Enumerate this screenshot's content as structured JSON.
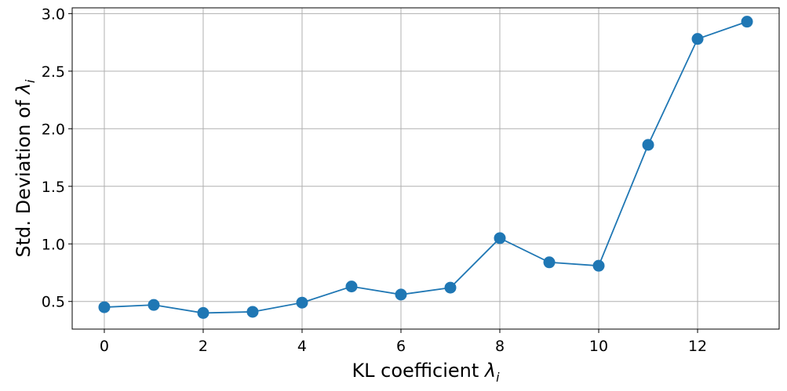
{
  "chart_data": {
    "type": "line",
    "xlabel": {
      "text": "KL coefficient ",
      "symbol": "λ",
      "subscript": "i"
    },
    "ylabel": {
      "text": "Std. Deviation of ",
      "symbol": "λ",
      "subscript": "i"
    },
    "x": [
      0,
      1,
      2,
      3,
      4,
      5,
      6,
      7,
      8,
      9,
      10,
      11,
      12,
      13
    ],
    "series": [
      {
        "values": [
          0.45,
          0.47,
          0.4,
          0.41,
          0.49,
          0.63,
          0.56,
          0.62,
          1.05,
          0.84,
          0.81,
          1.86,
          2.78,
          2.93
        ]
      }
    ],
    "xlim": [
      -0.65,
      13.65
    ],
    "ylim": [
      0.26,
      3.05
    ],
    "xticks": [
      "0",
      "2",
      "4",
      "6",
      "8",
      "10",
      "12"
    ],
    "yticks": [
      "0.5",
      "1.0",
      "1.5",
      "2.0",
      "2.5",
      "3.0"
    ],
    "grid": true,
    "line_color": "#1f77b4",
    "marker": "circle"
  }
}
